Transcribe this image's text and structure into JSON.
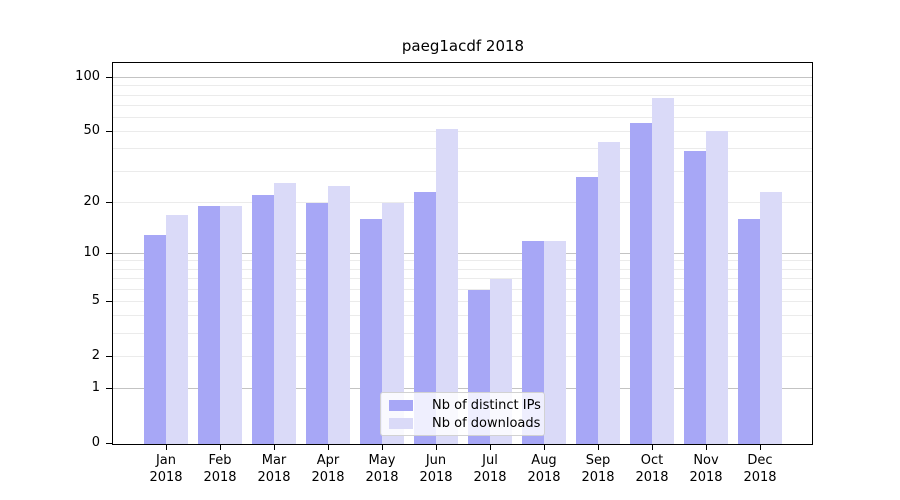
{
  "chart_data": {
    "type": "bar",
    "title": "paeg1acdf 2018",
    "categories": [
      "Jan",
      "Feb",
      "Mar",
      "Apr",
      "May",
      "Jun",
      "Jul",
      "Aug",
      "Sep",
      "Oct",
      "Nov",
      "Dec"
    ],
    "xtick_second_line": "2018",
    "series": [
      {
        "name": "Nb of distinct IPs",
        "color": "#a7a7f6",
        "values": [
          13,
          19,
          22,
          20,
          16,
          23,
          6,
          12,
          28,
          56,
          39,
          16
        ]
      },
      {
        "name": "Nb of downloads",
        "color": "#dadaf8",
        "values": [
          17,
          19,
          26,
          25,
          20,
          52,
          7,
          12,
          44,
          77,
          51,
          23
        ]
      }
    ],
    "xlabel": "",
    "ylabel": "",
    "yscale": "log1p",
    "ylim": [
      0,
      121
    ],
    "yticks": [
      0,
      1,
      2,
      5,
      10,
      20,
      50,
      100
    ],
    "grid": {
      "major_lines": [
        1,
        10,
        100
      ],
      "minor_lines": [
        2,
        3,
        4,
        5,
        6,
        7,
        8,
        9,
        20,
        30,
        40,
        50,
        60,
        70,
        80,
        90
      ],
      "major_color": "#c3c3c3",
      "minor_color": "#ebebeb"
    },
    "legend_position": "lower center inside plot"
  },
  "colors": {
    "background": "#ffffff",
    "axis": "#000000",
    "text": "#000000"
  }
}
